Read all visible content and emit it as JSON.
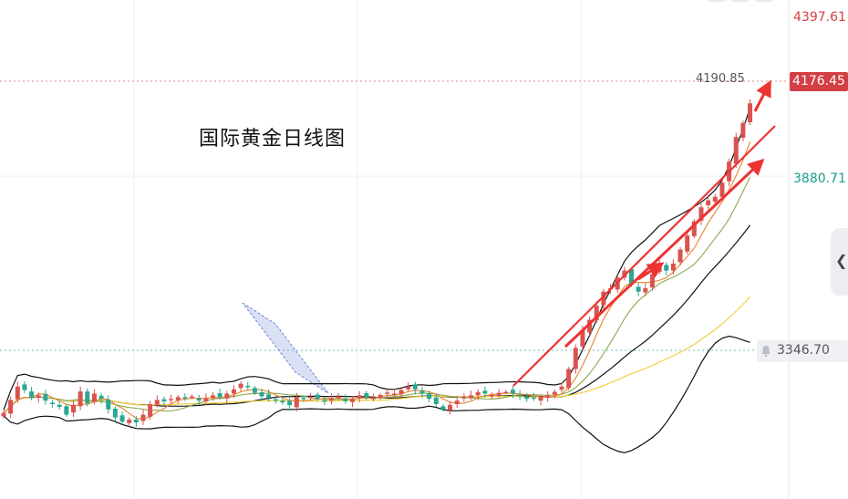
{
  "page": {
    "title": "国际黄金日线图"
  },
  "axis": {
    "labels": [
      {
        "text": "4397.61",
        "color": "#d23f45",
        "value": 4397.61
      },
      {
        "text": "3880.71",
        "color": "#1a9c8a",
        "value": 3880.71
      }
    ],
    "current_price": "4176.45",
    "high_marker": "4190.85",
    "alert_price": "3346.70"
  },
  "colors": {
    "up": "#d9534f",
    "down": "#2ba692",
    "bb": "#111111",
    "ma_short": "#e8842a",
    "ma_mid": "#8aa84a",
    "ma_long": "#f0d040",
    "arrow": "#ee3333",
    "channel": "#6b86d6"
  },
  "icons": {
    "alert": "bell-icon",
    "side": "chevron-left-icon"
  },
  "chart_data": {
    "type": "candlestick",
    "title": "国际黄金日线图",
    "ylim": [
      3050,
      4470
    ],
    "series": [
      {
        "name": "close",
        "values": [
          3295,
          3332,
          3370,
          3360,
          3338,
          3345,
          3330,
          3320,
          3312,
          3290,
          3318,
          3356,
          3322,
          3350,
          3335,
          3305,
          3282,
          3270,
          3276,
          3268,
          3290,
          3320,
          3332,
          3328,
          3335,
          3340,
          3337,
          3342,
          3330,
          3336,
          3345,
          3340,
          3350,
          3362,
          3378,
          3368,
          3352,
          3342,
          3338,
          3330,
          3325,
          3317,
          3340,
          3336,
          3341,
          3335,
          3330,
          3337,
          3342,
          3328,
          3335,
          3345,
          3340,
          3338,
          3346,
          3353,
          3350,
          3360,
          3370,
          3362,
          3350,
          3335,
          3320,
          3305,
          3318,
          3330,
          3342,
          3345,
          3354,
          3350,
          3346,
          3352,
          3355,
          3350,
          3342,
          3335,
          3336,
          3340,
          3345,
          3355,
          3370,
          3420,
          3480,
          3530,
          3560,
          3600,
          3640,
          3650,
          3680,
          3700,
          3660,
          3640,
          3650,
          3690,
          3720,
          3700,
          3720,
          3760,
          3800,
          3840,
          3880,
          3900,
          3910,
          3950,
          4010,
          4080,
          4120,
          4176
        ]
      }
    ],
    "annotations": [
      "4190.85",
      "3346.70"
    ]
  }
}
